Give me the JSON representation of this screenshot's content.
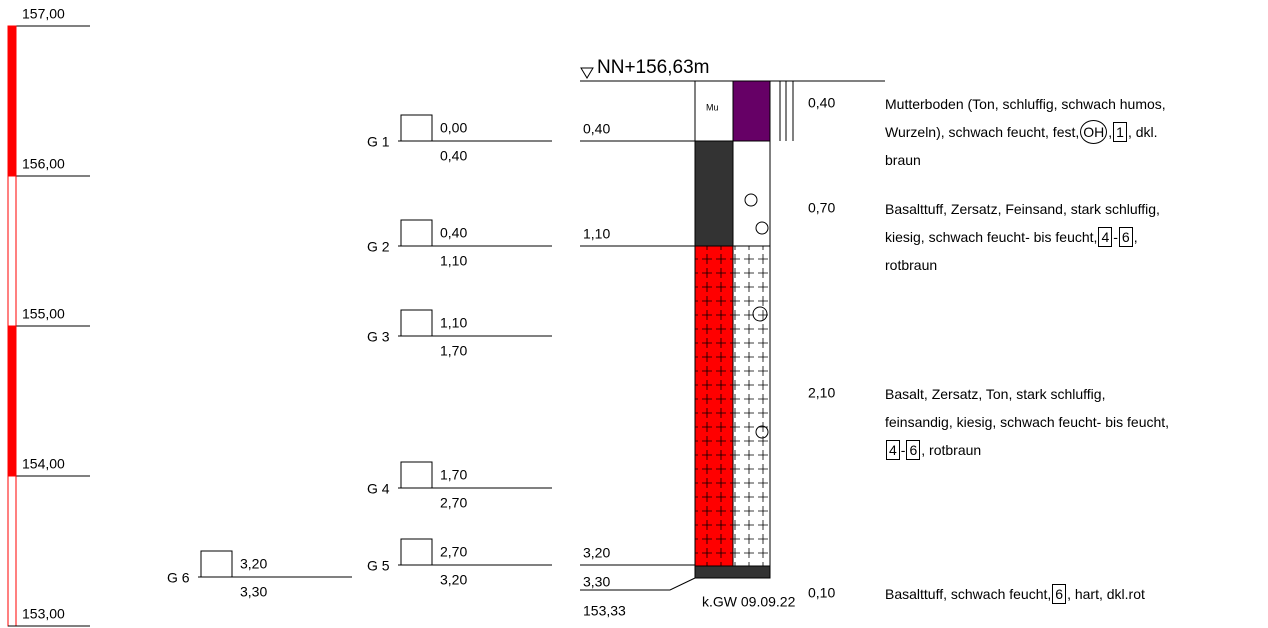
{
  "scale": {
    "labels": [
      "157,00",
      "156,00",
      "155,00",
      "154,00",
      "153,00"
    ]
  },
  "surface": "NN+156,63m",
  "column_label": "Mu",
  "depths": [
    "0,40",
    "1,10",
    "3,20",
    "3,30"
  ],
  "end_elevation": "153,33",
  "groundwater": "k.GW 09.09.22",
  "samples": [
    {
      "name": "G 1",
      "top": "0,00",
      "bottom": "0,40"
    },
    {
      "name": "G 2",
      "top": "0,40",
      "bottom": "1,10"
    },
    {
      "name": "G 3",
      "top": "1,10",
      "bottom": "1,70"
    },
    {
      "name": "G 4",
      "top": "1,70",
      "bottom": "2,70"
    },
    {
      "name": "G 5",
      "top": "2,70",
      "bottom": "3,20"
    },
    {
      "name": "G 6",
      "top": "3,20",
      "bottom": "3,30"
    }
  ],
  "layers": [
    {
      "thickness": "0,40",
      "lines": [
        [
          "Mutterboden (Ton, schluffig, schwach humos,"
        ],
        [
          "Wurzeln), schwach feucht, fest,",
          {
            "circled": "OH"
          },
          ",",
          {
            "boxed": "1"
          },
          ", dkl."
        ],
        [
          "braun"
        ]
      ]
    },
    {
      "thickness": "0,70",
      "lines": [
        [
          "Basalttuff, Zersatz, Feinsand, stark schluffig,"
        ],
        [
          "kiesig, schwach feucht- bis feucht,",
          {
            "boxed": "4"
          },
          "-",
          {
            "boxed": "6"
          },
          ","
        ],
        [
          "rotbraun"
        ]
      ]
    },
    {
      "thickness": "2,10",
      "lines": [
        [
          "Basalt, Zersatz, Ton, stark schluffig,"
        ],
        [
          "feinsandig, kiesig, schwach feucht- bis feucht,"
        ],
        [
          {
            "boxed": "4"
          },
          "-",
          {
            "boxed": "6"
          },
          ", rotbraun"
        ]
      ]
    },
    {
      "thickness": "0,10",
      "lines": [
        [
          "Basalttuff, schwach feucht,",
          {
            "boxed": "6"
          },
          ", hart, dkl.rot"
        ]
      ]
    }
  ]
}
